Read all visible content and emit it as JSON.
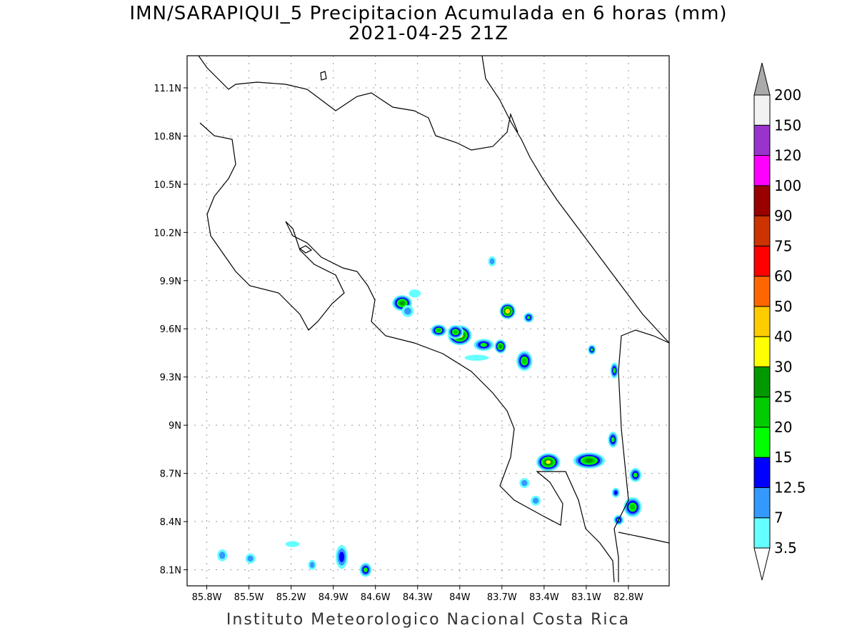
{
  "title_line1": "IMN/SARAPIQUI_5 Precipitacion Acumulada en 6 horas (mm)",
  "title_line2": "2021-04-25 21Z",
  "footer": "Instituto Meteorologico Nacional Costa Rica",
  "chart_data": {
    "type": "heatmap",
    "subtype": "filled-contour map",
    "lon_range": [
      -85.94,
      -82.51
    ],
    "lat_range": [
      8.0,
      11.3
    ],
    "x_ticks": [
      "85.8W",
      "85.5W",
      "85.2W",
      "84.9W",
      "84.6W",
      "84.3W",
      "84W",
      "83.7W",
      "83.4W",
      "83.1W",
      "82.8W"
    ],
    "x_tick_values": [
      -85.8,
      -85.5,
      -85.2,
      -84.9,
      -84.6,
      -84.3,
      -84.0,
      -83.7,
      -83.4,
      -83.1,
      -82.8
    ],
    "y_ticks": [
      "11.1N",
      "10.8N",
      "10.5N",
      "10.2N",
      "9.9N",
      "9.6N",
      "9.3N",
      "9N",
      "8.7N",
      "8.4N",
      "8.1N"
    ],
    "y_tick_values": [
      11.1,
      10.8,
      10.5,
      10.2,
      9.9,
      9.6,
      9.3,
      9.0,
      8.7,
      8.4,
      8.1
    ],
    "grid": true,
    "colorbar": {
      "labels": [
        "3.5",
        "7",
        "12.5",
        "15",
        "20",
        "25",
        "30",
        "40",
        "50",
        "60",
        "75",
        "90",
        "100",
        "120",
        "150",
        "200"
      ],
      "colors": [
        "#66ffff",
        "#3399ff",
        "#0000ff",
        "#00ff00",
        "#00cc00",
        "#009900",
        "#ffff00",
        "#ffcc00",
        "#ff6600",
        "#ff0000",
        "#cc3300",
        "#990000",
        "#ff00ff",
        "#9933cc",
        "#f2f2f2"
      ],
      "over_color": "#aaaaaa",
      "under_color": "#ffffff"
    },
    "cells": [
      {
        "lon": -84.41,
        "lat": 9.76,
        "max": 25,
        "rx": 1.0,
        "ry": 0.8
      },
      {
        "lon": -84.32,
        "lat": 9.82,
        "max": 3.5,
        "rx": 0.6,
        "ry": 0.4
      },
      {
        "lon": -84.37,
        "lat": 9.71,
        "max": 7,
        "rx": 0.6,
        "ry": 0.6
      },
      {
        "lon": -84.0,
        "lat": 9.56,
        "max": 40,
        "rx": 1.2,
        "ry": 1.0
      },
      {
        "lon": -84.03,
        "lat": 9.58,
        "max": 20,
        "rx": 0.8,
        "ry": 0.7
      },
      {
        "lon": -84.15,
        "lat": 9.59,
        "max": 20,
        "rx": 0.8,
        "ry": 0.6
      },
      {
        "lon": -83.83,
        "lat": 9.5,
        "max": 15,
        "rx": 1.0,
        "ry": 0.6
      },
      {
        "lon": -83.71,
        "lat": 9.49,
        "max": 25,
        "rx": 0.6,
        "ry": 0.7
      },
      {
        "lon": -83.66,
        "lat": 9.71,
        "max": 40,
        "rx": 0.8,
        "ry": 0.8
      },
      {
        "lon": -83.54,
        "lat": 9.4,
        "max": 20,
        "rx": 0.8,
        "ry": 1.0
      },
      {
        "lon": -83.51,
        "lat": 9.67,
        "max": 15,
        "rx": 0.5,
        "ry": 0.5
      },
      {
        "lon": -83.77,
        "lat": 10.02,
        "max": 7,
        "rx": 0.4,
        "ry": 0.5
      },
      {
        "lon": -83.88,
        "lat": 9.42,
        "max": 3.5,
        "rx": 1.2,
        "ry": 0.3
      },
      {
        "lon": -83.37,
        "lat": 8.77,
        "max": 30,
        "rx": 1.2,
        "ry": 0.9
      },
      {
        "lon": -83.08,
        "lat": 8.78,
        "max": 25,
        "rx": 1.6,
        "ry": 0.8
      },
      {
        "lon": -82.91,
        "lat": 8.91,
        "max": 15,
        "rx": 0.5,
        "ry": 0.8
      },
      {
        "lon": -82.77,
        "lat": 8.49,
        "max": 20,
        "rx": 0.9,
        "ry": 1.0
      },
      {
        "lon": -82.75,
        "lat": 8.69,
        "max": 15,
        "rx": 0.6,
        "ry": 0.7
      },
      {
        "lon": -82.9,
        "lat": 9.34,
        "max": 15,
        "rx": 0.4,
        "ry": 0.8
      },
      {
        "lon": -83.06,
        "lat": 9.47,
        "max": 15,
        "rx": 0.4,
        "ry": 0.5
      },
      {
        "lon": -82.87,
        "lat": 8.41,
        "max": 15,
        "rx": 0.5,
        "ry": 0.5
      },
      {
        "lon": -82.89,
        "lat": 8.58,
        "max": 12.5,
        "rx": 0.4,
        "ry": 0.5
      },
      {
        "lon": -85.69,
        "lat": 8.19,
        "max": 7,
        "rx": 0.5,
        "ry": 0.6
      },
      {
        "lon": -85.49,
        "lat": 8.17,
        "max": 7,
        "rx": 0.5,
        "ry": 0.5
      },
      {
        "lon": -84.84,
        "lat": 8.18,
        "max": 12.5,
        "rx": 0.6,
        "ry": 1.2
      },
      {
        "lon": -84.67,
        "lat": 8.1,
        "max": 15,
        "rx": 0.6,
        "ry": 0.7
      },
      {
        "lon": -85.05,
        "lat": 8.13,
        "max": 7,
        "rx": 0.4,
        "ry": 0.5
      },
      {
        "lon": -85.19,
        "lat": 8.26,
        "max": 3.5,
        "rx": 0.7,
        "ry": 0.3
      },
      {
        "lon": -83.54,
        "lat": 8.64,
        "max": 7,
        "rx": 0.5,
        "ry": 0.5
      },
      {
        "lon": -83.46,
        "lat": 8.53,
        "max": 7,
        "rx": 0.5,
        "ry": 0.5
      }
    ]
  }
}
